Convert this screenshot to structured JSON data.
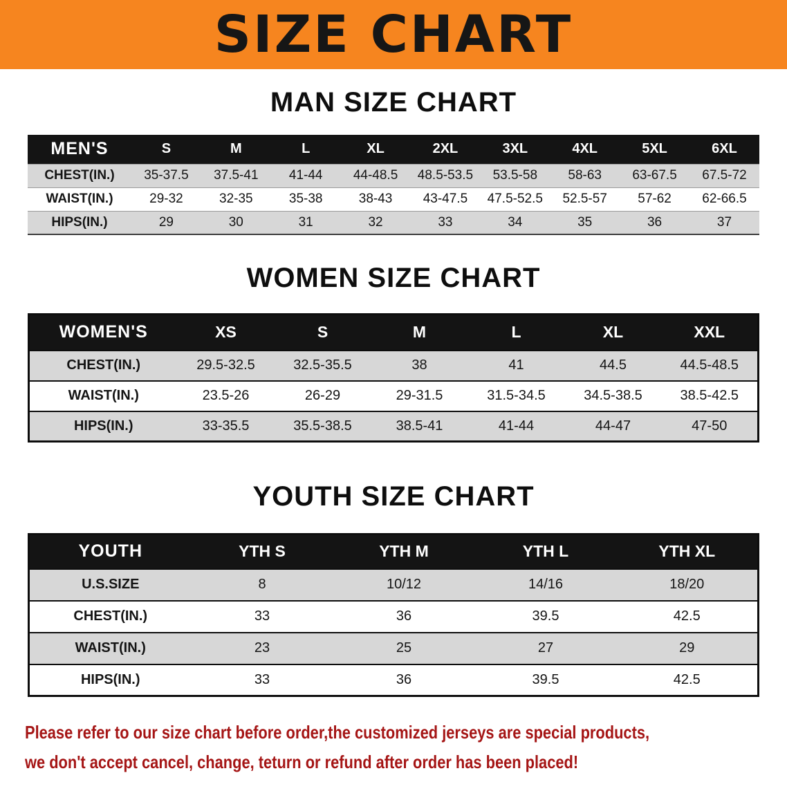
{
  "banner": {
    "title": "SIZE CHART"
  },
  "colors": {
    "banner_bg": "#f6851f",
    "table_header_bg": "#141414",
    "table_header_text": "#ffffff",
    "row_stripe": "#d7d7d7",
    "footer_text": "#a51515"
  },
  "sections": [
    {
      "id": "men",
      "heading": "MAN SIZE CHART",
      "table": {
        "header": [
          "MEN'S",
          "S",
          "M",
          "L",
          "XL",
          "2XL",
          "3XL",
          "4XL",
          "5XL",
          "6XL"
        ],
        "rows": [
          [
            "CHEST(IN.)",
            "35-37.5",
            "37.5-41",
            "41-44",
            "44-48.5",
            "48.5-53.5",
            "53.5-58",
            "58-63",
            "63-67.5",
            "67.5-72"
          ],
          [
            "WAIST(IN.)",
            "29-32",
            "32-35",
            "35-38",
            "38-43",
            "43-47.5",
            "47.5-52.5",
            "52.5-57",
            "57-62",
            "62-66.5"
          ],
          [
            "HIPS(IN.)",
            "29",
            "30",
            "31",
            "32",
            "33",
            "34",
            "35",
            "36",
            "37"
          ]
        ]
      }
    },
    {
      "id": "women",
      "heading": "WOMEN SIZE CHART",
      "table": {
        "header": [
          "WOMEN'S",
          "XS",
          "S",
          "M",
          "L",
          "XL",
          "XXL"
        ],
        "rows": [
          [
            "CHEST(IN.)",
            "29.5-32.5",
            "32.5-35.5",
            "38",
            "41",
            "44.5",
            "44.5-48.5"
          ],
          [
            "WAIST(IN.)",
            "23.5-26",
            "26-29",
            "29-31.5",
            "31.5-34.5",
            "34.5-38.5",
            "38.5-42.5"
          ],
          [
            "HIPS(IN.)",
            "33-35.5",
            "35.5-38.5",
            "38.5-41",
            "41-44",
            "44-47",
            "47-50"
          ]
        ]
      }
    },
    {
      "id": "youth",
      "heading": "YOUTH SIZE CHART",
      "table": {
        "header": [
          "YOUTH",
          "YTH S",
          "YTH M",
          "YTH L",
          "YTH XL"
        ],
        "rows": [
          [
            "U.S.SIZE",
            "8",
            "10/12",
            "14/16",
            "18/20"
          ],
          [
            "CHEST(IN.)",
            "33",
            "36",
            "39.5",
            "42.5"
          ],
          [
            "WAIST(IN.)",
            "23",
            "25",
            "27",
            "29"
          ],
          [
            "HIPS(IN.)",
            "33",
            "36",
            "39.5",
            "42.5"
          ]
        ]
      }
    }
  ],
  "footer": {
    "line1": "Please refer to our size chart before order,the customized jerseys are special products,",
    "line2": "we don't accept cancel, change, teturn or refund after order has been placed!"
  }
}
